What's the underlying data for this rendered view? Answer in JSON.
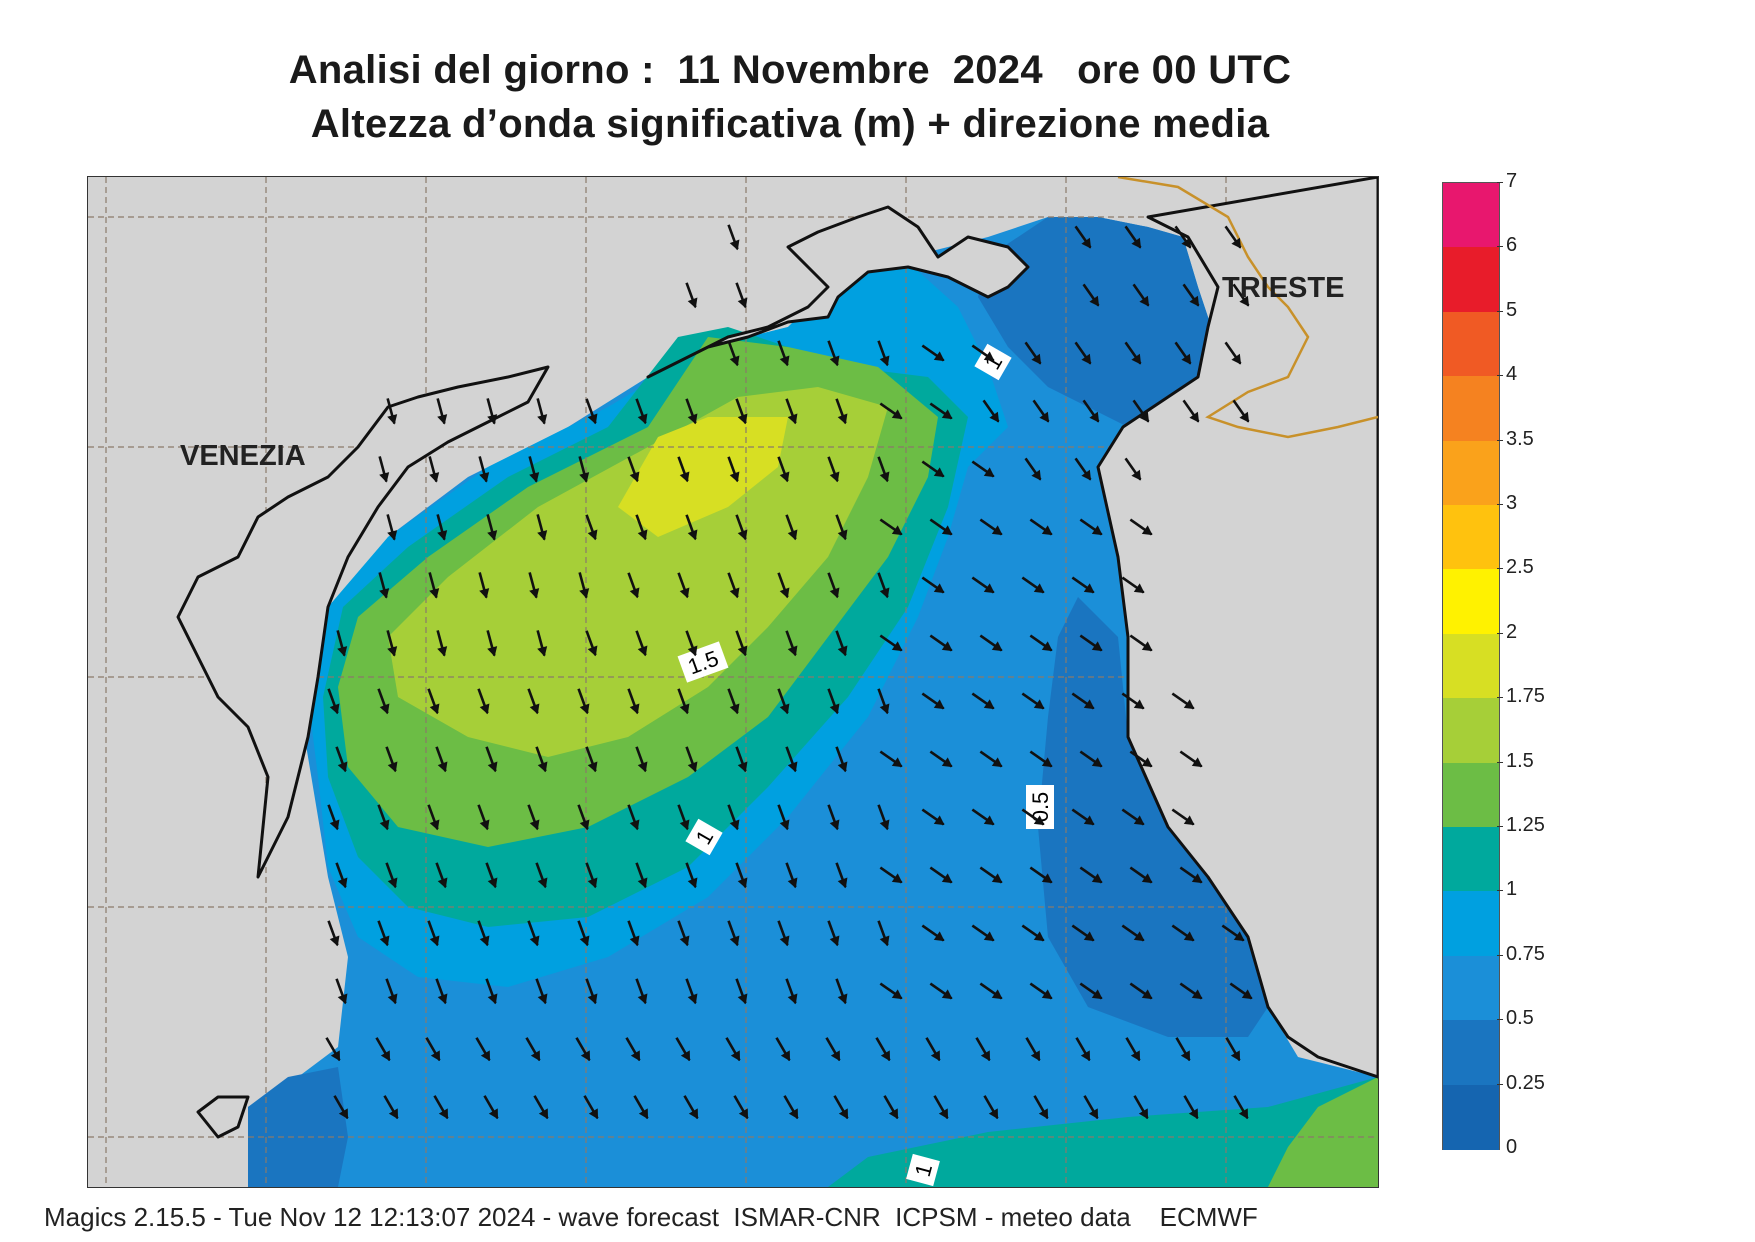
{
  "header": {
    "title_line1": "Analisi del giorno :  11 Novembre  2024   ore 00 UTC",
    "title_line2": "Altezza d’onda significativa (m) + direzione media"
  },
  "map": {
    "cities": {
      "venezia": "VENEZIA",
      "trieste": "TRIESTE"
    },
    "contour_labels": [
      "1",
      "1.5",
      "1",
      "0.5",
      "1"
    ]
  },
  "legend": {
    "levels": [
      {
        "label": "7",
        "color": "#e8176e"
      },
      {
        "label": "6",
        "color": "#e81c2a"
      },
      {
        "label": "5",
        "color": "#f05a24"
      },
      {
        "label": "4",
        "color": "#f58220"
      },
      {
        "label": "3.5",
        "color": "#faa21b"
      },
      {
        "label": "3",
        "color": "#ffc20e"
      },
      {
        "label": "2.5",
        "color": "#fff200"
      },
      {
        "label": "2",
        "color": "#d7df23"
      },
      {
        "label": "1.75",
        "color": "#a6cf38"
      },
      {
        "label": "1.5",
        "color": "#6cbd45"
      },
      {
        "label": "1.25",
        "color": "#00a99d"
      },
      {
        "label": "1",
        "color": "#00a0e0"
      },
      {
        "label": "0.75",
        "color": "#1b8fd8"
      },
      {
        "label": "0.5",
        "color": "#1a75c0"
      },
      {
        "label": "0.25",
        "color": "#1565b0"
      }
    ],
    "bottom_label": "0"
  },
  "footer": {
    "credit": "Magics 2.15.5 - Tue Nov 12 12:13:07 2024 - wave forecast  ISMAR-CNR  ICPSM - meteo data    ECMWF"
  }
}
